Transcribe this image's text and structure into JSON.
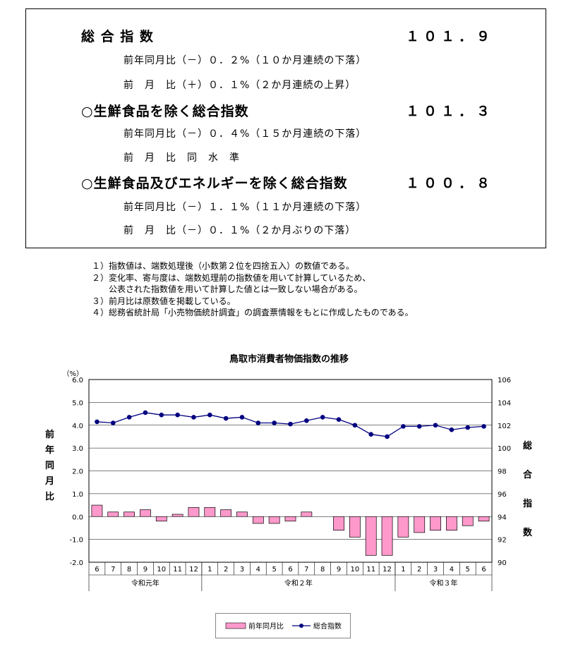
{
  "summary": {
    "sections": [
      {
        "title": "総 合 指 数",
        "value": "１０１．９",
        "lines": [
          "前年同月比（－）０．２%（１０か月連続の下落）",
          "前　月　比（＋）０．１%（２か月連続の上昇）"
        ]
      },
      {
        "title": "○生鮮食品を除く総合指数",
        "value": "１０１．３",
        "lines": [
          "前年同月比（－）０．４%（１５か月連続の下落）",
          "前　月　比　同　水　準"
        ]
      },
      {
        "title": "○生鮮食品及びエネルギーを除く総合指数",
        "value": "１００．８",
        "lines": [
          "前年同月比（－）１．１%（１１か月連続の下落）",
          "前　月　比（－）０．１%（２か月ぶりの下落）"
        ]
      }
    ]
  },
  "notes": [
    "１）指数値は、端数処理後（小数第２位を四捨五入）の数値である。",
    "２）変化率、寄与度は、端数処理前の指数値を用いて計算しているため、",
    "　　公表された指数値を用いて計算した値とは一致しない場合がある。",
    "３）前月比は原数値を掲載している。",
    "４）総務省統計局「小売物価統計調査」の調査票情報をもとに作成したものである。"
  ],
  "chart_data": {
    "type": "bar",
    "title": "鳥取市消費者物価指数の推移",
    "left_axis_unit": "（%）",
    "left_axis_label": "前年同月比",
    "right_axis_label": "総合指数",
    "categories": [
      "6",
      "7",
      "8",
      "9",
      "10",
      "11",
      "12",
      "1",
      "2",
      "3",
      "4",
      "5",
      "6",
      "7",
      "8",
      "9",
      "10",
      "11",
      "12",
      "1",
      "2",
      "3",
      "4",
      "5",
      "6"
    ],
    "year_groups": [
      {
        "label": "令和元年",
        "count": 7
      },
      {
        "label": "令和２年",
        "count": 12
      },
      {
        "label": "令和３年",
        "count": 6
      }
    ],
    "series": [
      {
        "name": "前年同月比",
        "kind": "bar",
        "axis": "left",
        "color": "#ff99cc",
        "values": [
          0.5,
          0.2,
          0.2,
          0.3,
          -0.2,
          0.1,
          0.4,
          0.4,
          0.3,
          0.2,
          -0.3,
          -0.3,
          -0.2,
          0.2,
          0.0,
          -0.6,
          -0.9,
          -1.7,
          -1.7,
          -0.9,
          -0.7,
          -0.6,
          -0.6,
          -0.4,
          -0.2
        ]
      },
      {
        "name": "総合指数",
        "kind": "line",
        "axis": "right",
        "color": "#000080",
        "values": [
          102.3,
          102.2,
          102.7,
          103.1,
          102.9,
          102.9,
          102.7,
          102.9,
          102.6,
          102.7,
          102.2,
          102.2,
          102.1,
          102.4,
          102.7,
          102.5,
          102.0,
          101.2,
          101.0,
          101.9,
          101.9,
          102.0,
          101.6,
          101.8,
          101.9
        ]
      }
    ],
    "ylim_left": [
      -2.0,
      6.0
    ],
    "ylim_right": [
      90,
      106
    ],
    "yticks_left": [
      "6.0",
      "5.0",
      "4.0",
      "3.0",
      "2.0",
      "1.0",
      "0.0",
      "-1.0",
      "-2.0"
    ],
    "yticks_right": [
      "106",
      "104",
      "102",
      "100",
      "98",
      "96",
      "94",
      "92",
      "90"
    ],
    "grid": true,
    "legend_position": "bottom"
  }
}
